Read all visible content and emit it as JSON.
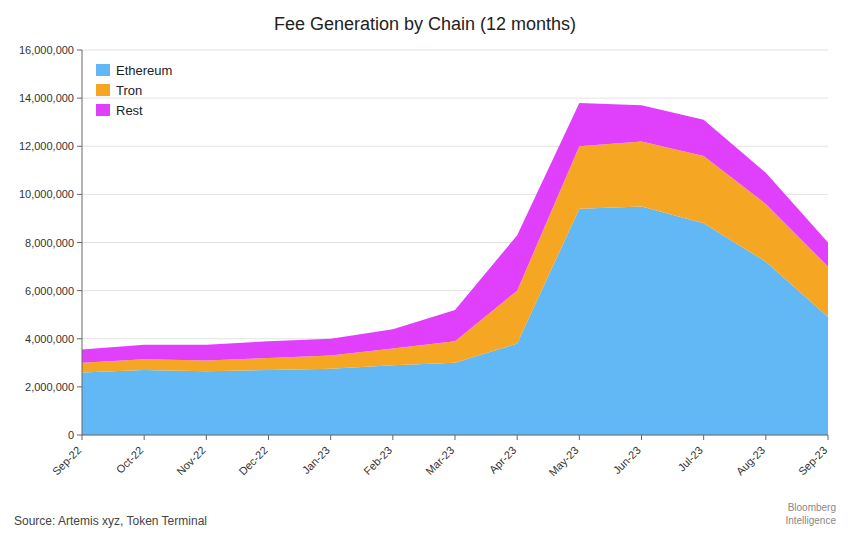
{
  "chart_data": {
    "type": "area",
    "stacked": true,
    "title": "Fee Generation by Chain (12 months)",
    "annotations": [
      "Source: Artemis xyz, Token Terminal",
      "Bloomberg\nIntelligence"
    ],
    "categories": [
      "Sep-22",
      "Oct-22",
      "Nov-22",
      "Dec-22",
      "Jan-23",
      "Feb-23",
      "Mar-23",
      "Apr-23",
      "May-23",
      "Jun-23",
      "Jul-23",
      "Aug-23",
      "Sep-23"
    ],
    "series": [
      {
        "name": "Ethereum",
        "color": "#62b8f5",
        "values": [
          2600000,
          2700000,
          2650000,
          2700000,
          2750000,
          2900000,
          3000000,
          3800000,
          9400000,
          9500000,
          8800000,
          7200000,
          4900000
        ]
      },
      {
        "name": "Tron",
        "color": "#f5a623",
        "values": [
          400000,
          450000,
          450000,
          500000,
          550000,
          700000,
          900000,
          2200000,
          2600000,
          2700000,
          2800000,
          2400000,
          2100000
        ]
      },
      {
        "name": "Rest",
        "color": "#e040fb",
        "values": [
          550000,
          600000,
          650000,
          700000,
          700000,
          800000,
          1300000,
          2300000,
          1800000,
          1500000,
          1500000,
          1300000,
          1000000
        ]
      }
    ],
    "ylim": [
      0,
      16000000
    ],
    "yticks": [
      0,
      {
        "value": 2000000,
        "label": "2,000,000"
      },
      {
        "value": 4000000,
        "label": "4,000,000"
      },
      {
        "value": 6000000,
        "label": "6,000,000"
      },
      {
        "value": 8000000,
        "label": "8,000,000"
      },
      {
        "value": 10000000,
        "label": "10,000,000"
      },
      {
        "value": 12000000,
        "label": "12,000,000"
      },
      {
        "value": 14000000,
        "label": "14,000,000"
      },
      {
        "value": 16000000,
        "label": "16,000,000"
      }
    ],
    "grid": true,
    "legend": "upper-left"
  }
}
